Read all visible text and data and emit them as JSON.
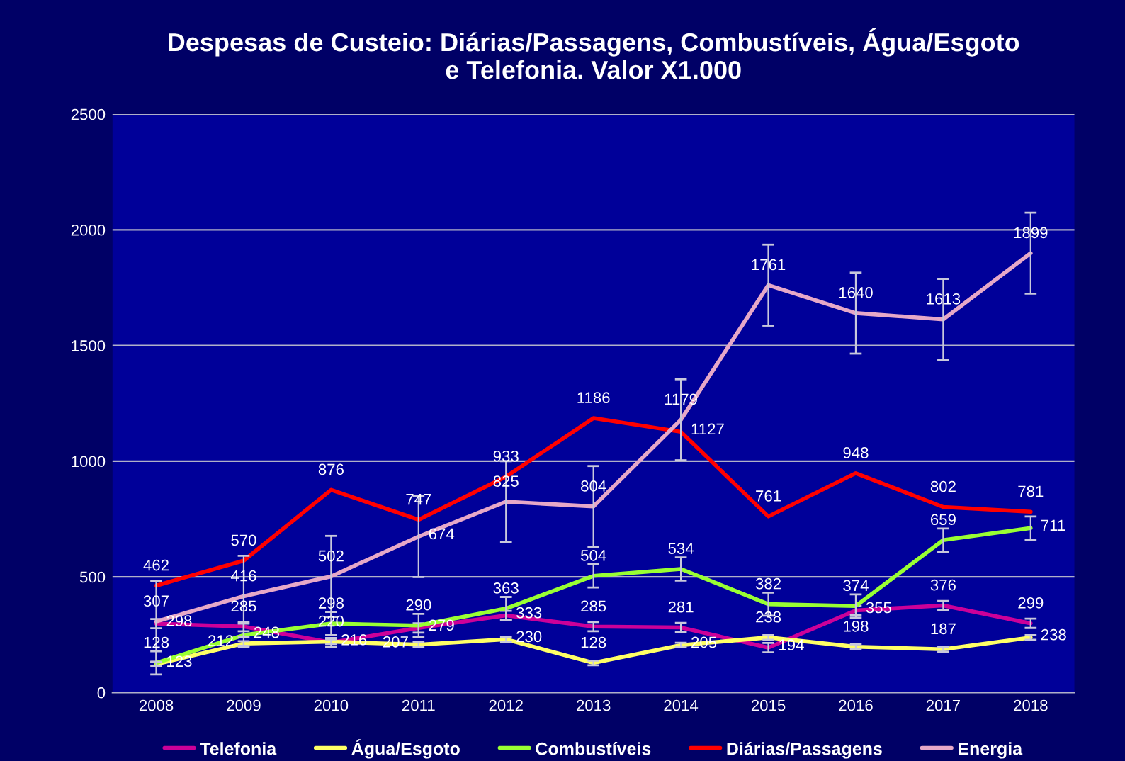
{
  "chart_data": {
    "type": "line",
    "title": "Despesas de Custeio: Diárias/Passagens, Combustíveis, Água/Esgoto\ne Telefonia. Valor X1.000",
    "categories": [
      "2008",
      "2009",
      "2010",
      "2011",
      "2012",
      "2013",
      "2014",
      "2015",
      "2016",
      "2017",
      "2018"
    ],
    "series": [
      {
        "name": "Telefonia",
        "color": "#cc0099",
        "values": [
          298,
          285,
          216,
          279,
          333,
          285,
          281,
          194,
          355,
          376,
          299
        ],
        "errors": [
          20,
          20,
          20,
          20,
          20,
          20,
          20,
          20,
          20,
          20,
          20
        ]
      },
      {
        "name": "Água/Esgoto",
        "color": "#ffff66",
        "values": [
          123,
          212,
          220,
          207,
          230,
          128,
          205,
          238,
          198,
          187,
          238
        ],
        "errors": [
          10,
          10,
          10,
          10,
          10,
          10,
          10,
          10,
          10,
          10,
          10
        ]
      },
      {
        "name": "Combustíveis",
        "color": "#99ff33",
        "values": [
          128,
          248,
          298,
          290,
          363,
          504,
          534,
          382,
          374,
          659,
          711
        ],
        "errors": [
          50,
          50,
          50,
          50,
          50,
          50,
          50,
          50,
          50,
          50,
          50
        ]
      },
      {
        "name": "Diárias/Passagens",
        "color": "#ff0000",
        "values": [
          462,
          570,
          876,
          747,
          933,
          1186,
          1127,
          761,
          948,
          802,
          781
        ]
      },
      {
        "name": "Energia",
        "color": "#e6a8c8",
        "values": [
          307,
          416,
          502,
          674,
          825,
          804,
          1179,
          1761,
          1640,
          1613,
          1899
        ],
        "errors": [
          175,
          175,
          175,
          175,
          175,
          175,
          175,
          175,
          175,
          175,
          175
        ]
      }
    ],
    "ylim": [
      0,
      2500
    ],
    "yticks": [
      0,
      500,
      1000,
      1500,
      2000,
      2500
    ],
    "grid": "y",
    "legend": "bottom",
    "data_labels": true,
    "marker": "none",
    "line_style": "solid"
  }
}
